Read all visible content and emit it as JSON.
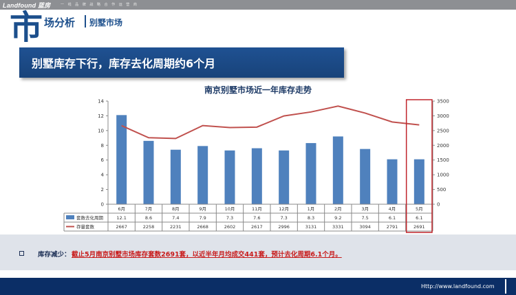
{
  "header": {
    "logo_text": "Landfound 蓝房",
    "slogan": "一 线 品 牌 战 略 合 作 运 营 商",
    "big_char": "市",
    "section_title": "场分析",
    "subsection_title": "别墅市场"
  },
  "banner": {
    "text": "别墅库存下行，库存去化周期约6个月"
  },
  "chart_data": {
    "type": "bar+line",
    "title": "南京别墅市场近一年库存走势",
    "categories": [
      "6月",
      "7月",
      "8月",
      "9月",
      "10月",
      "11月",
      "12月",
      "1月",
      "2月",
      "3月",
      "4月",
      "5月"
    ],
    "series": [
      {
        "name": "套数去化周期",
        "type": "bar",
        "axis": "left",
        "color": "#4f81bd",
        "values": [
          12.1,
          8.6,
          7.4,
          7.9,
          7.3,
          7.6,
          7.3,
          8.3,
          9.2,
          7.5,
          6.1,
          6.1
        ]
      },
      {
        "name": "存量套数",
        "type": "line",
        "axis": "right",
        "color": "#c0504d",
        "values": [
          2667,
          2258,
          2231,
          2668,
          2602,
          2617,
          2996,
          3131,
          3331,
          3094,
          2791,
          2691
        ]
      }
    ],
    "left_axis": {
      "min": 0,
      "max": 14,
      "ticks": [
        0,
        2,
        4,
        6,
        8,
        10,
        12,
        14
      ]
    },
    "right_axis": {
      "min": 0,
      "max": 3500,
      "ticks": [
        0,
        500,
        1000,
        1500,
        2000,
        2500,
        3000,
        3500
      ]
    },
    "highlight_category": "5月",
    "grid": false,
    "legend": "data-table"
  },
  "summary": {
    "label": "库存减少：",
    "text": "截止5月南京别墅市场库存套数2691套，以近半年月均成交441套，预计去化周期6.1个月。"
  },
  "footer": {
    "url": "Http://www.landfound.com"
  },
  "colors": {
    "brand": "#1c4f8c",
    "footer": "#0b2e66",
    "accent": "#c81a1a"
  }
}
